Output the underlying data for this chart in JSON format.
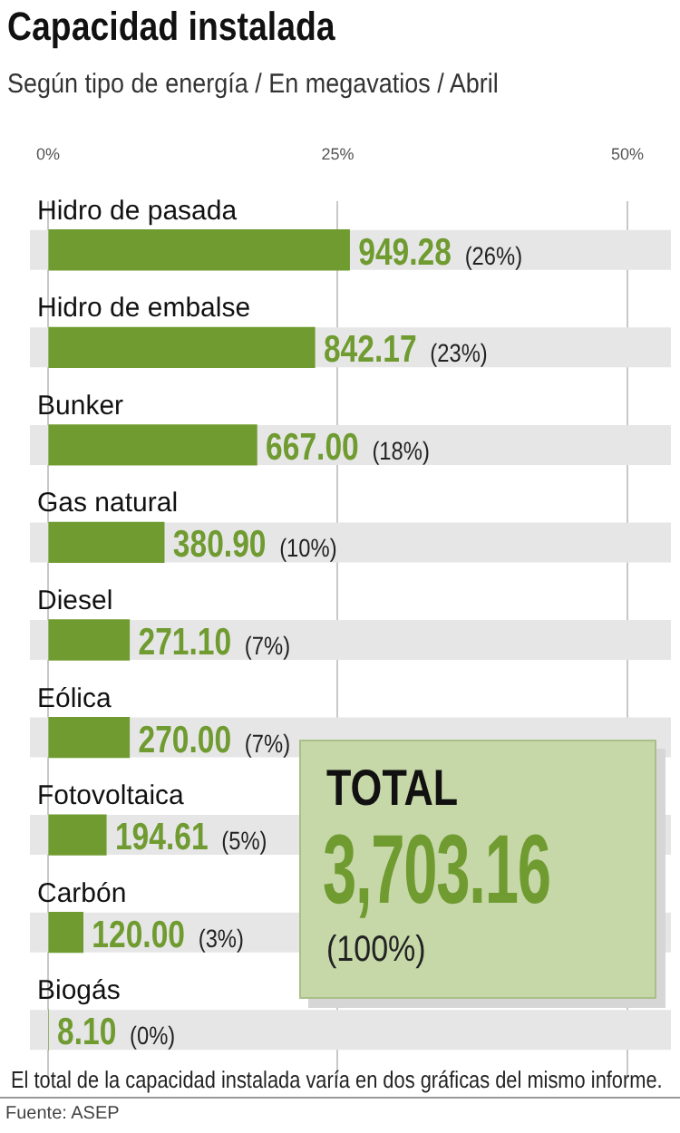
{
  "chart_data": {
    "type": "bar",
    "orientation": "horizontal",
    "title": "Capacidad instalada",
    "subtitle": "Según tipo de energía / En megavatios / Abril",
    "categories": [
      "Hidro de pasada",
      "Hidro de embalse",
      "Bunker",
      "Gas natural",
      "Diesel",
      "Eólica",
      "Fotovoltaica",
      "Carbón",
      "Biogás"
    ],
    "values": [
      26,
      23,
      18,
      10,
      7,
      7,
      5,
      3,
      0
    ],
    "value_labels": [
      "949.28 (26%)",
      "842.17 (23%)",
      "667.00 (18%)",
      "380.90 (10%)",
      "271.10 (7%)",
      "270.00 (7%)",
      "194.61 (5%)",
      "120.00 (3%)",
      "8.10 (0%)"
    ],
    "color": "#6f9b30",
    "xlim": [
      0,
      50
    ],
    "xticks": [
      {
        "value": 0,
        "label": "0%"
      },
      {
        "value": 25,
        "label": "25%"
      },
      {
        "value": 50,
        "label": "50%"
      }
    ],
    "grid": "x",
    "legend": false,
    "annotations": [
      "TOTAL",
      "3,703.16",
      "(100%)",
      "El total de la capacidad instalada varía en dos gráficas del mismo informe.",
      "Fuente: ASEP"
    ]
  }
}
